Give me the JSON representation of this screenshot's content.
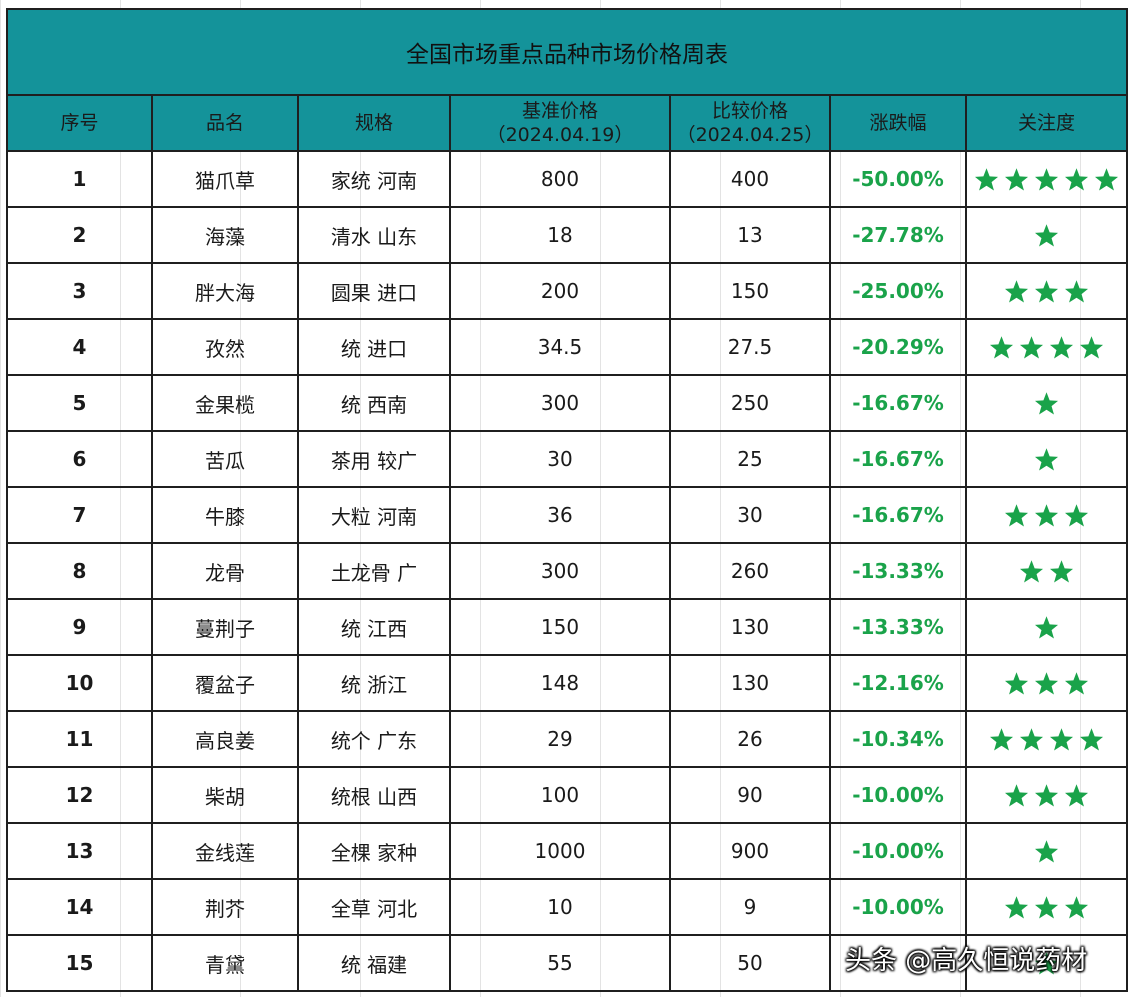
{
  "title": "全国市场重点品种市场价格周表",
  "headers": {
    "seq": "序号",
    "name": "品名",
    "spec": "规格",
    "base_label": "基准价格",
    "base_date": "（2024.04.19）",
    "compare_label": "比较价格",
    "compare_date": "（2024.04.25）",
    "change": "涨跌幅",
    "attention": "关注度"
  },
  "rows": [
    {
      "seq": "1",
      "name": "猫爪草",
      "spec": "家统 河南",
      "base": "800",
      "compare": "400",
      "change": "-50.00%",
      "stars": 5
    },
    {
      "seq": "2",
      "name": "海藻",
      "spec": "清水 山东",
      "base": "18",
      "compare": "13",
      "change": "-27.78%",
      "stars": 1
    },
    {
      "seq": "3",
      "name": "胖大海",
      "spec": "圆果 进口",
      "base": "200",
      "compare": "150",
      "change": "-25.00%",
      "stars": 3
    },
    {
      "seq": "4",
      "name": "孜然",
      "spec": "统 进口",
      "base": "34.5",
      "compare": "27.5",
      "change": "-20.29%",
      "stars": 4
    },
    {
      "seq": "5",
      "name": "金果榄",
      "spec": "统 西南",
      "base": "300",
      "compare": "250",
      "change": "-16.67%",
      "stars": 1
    },
    {
      "seq": "6",
      "name": "苦瓜",
      "spec": "茶用 较广",
      "base": "30",
      "compare": "25",
      "change": "-16.67%",
      "stars": 1
    },
    {
      "seq": "7",
      "name": "牛膝",
      "spec": "大粒 河南",
      "base": "36",
      "compare": "30",
      "change": "-16.67%",
      "stars": 3
    },
    {
      "seq": "8",
      "name": "龙骨",
      "spec": "土龙骨 广",
      "base": "300",
      "compare": "260",
      "change": "-13.33%",
      "stars": 2
    },
    {
      "seq": "9",
      "name": "蔓荆子",
      "spec": "统 江西",
      "base": "150",
      "compare": "130",
      "change": "-13.33%",
      "stars": 1
    },
    {
      "seq": "10",
      "name": "覆盆子",
      "spec": "统 浙江",
      "base": "148",
      "compare": "130",
      "change": "-12.16%",
      "stars": 3
    },
    {
      "seq": "11",
      "name": "高良姜",
      "spec": "统个 广东",
      "base": "29",
      "compare": "26",
      "change": "-10.34%",
      "stars": 4
    },
    {
      "seq": "12",
      "name": "柴胡",
      "spec": "统根 山西",
      "base": "100",
      "compare": "90",
      "change": "-10.00%",
      "stars": 3
    },
    {
      "seq": "13",
      "name": "金线莲",
      "spec": "全棵 家种",
      "base": "1000",
      "compare": "900",
      "change": "-10.00%",
      "stars": 1
    },
    {
      "seq": "14",
      "name": "荆芥",
      "spec": "全草 河北",
      "base": "10",
      "compare": "9",
      "change": "-10.00%",
      "stars": 3
    },
    {
      "seq": "15",
      "name": "青黛",
      "spec": "统 福建",
      "base": "55",
      "compare": "50",
      "change": "",
      "stars": 1
    }
  ],
  "watermark": "头条 @高久恒说药材",
  "colors": {
    "header_bg": "#14939a",
    "change_green": "#1aa34a",
    "star_green": "#1aa34a"
  },
  "icons": {
    "attention": "star-icon"
  }
}
